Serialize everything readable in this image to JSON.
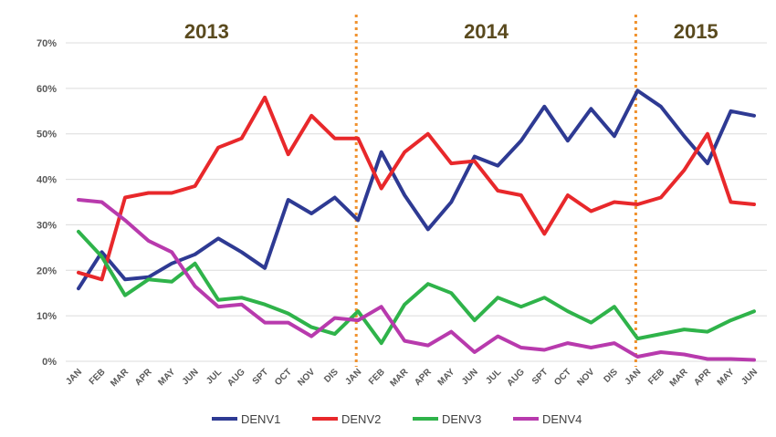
{
  "chart_data": {
    "type": "line",
    "title": "",
    "xlabel": "",
    "ylabel": "",
    "ylim": [
      0,
      70
    ],
    "yticks": [
      "0%",
      "10%",
      "20%",
      "30%",
      "40%",
      "50%",
      "60%",
      "70%"
    ],
    "grid": true,
    "legend_position": "bottom",
    "categories": [
      "JAN",
      "FEB",
      "MAR",
      "APR",
      "MAY",
      "JUN",
      "JUL",
      "AUG",
      "SPT",
      "OCT",
      "NOV",
      "DIS",
      "JAN",
      "FEB",
      "MAR",
      "APR",
      "MAY",
      "JUN",
      "JUL",
      "AUG",
      "SPT",
      "OCT",
      "NOV",
      "DIS",
      "JAN",
      "FEB",
      "MAR",
      "APR",
      "MAY",
      "JUN"
    ],
    "year_labels": [
      {
        "text": "2013",
        "start_index": 0,
        "end_index": 11
      },
      {
        "text": "2014",
        "start_index": 12,
        "end_index": 23
      },
      {
        "text": "2015",
        "start_index": 24,
        "end_index": 29
      }
    ],
    "year_dividers_at_index": [
      12,
      24
    ],
    "divider_color": "#f0922e",
    "series": [
      {
        "name": "DENV1",
        "color": "#2e3a93",
        "values": [
          16,
          24,
          18,
          18.5,
          21.5,
          23.5,
          27,
          24,
          20.5,
          35.5,
          32.5,
          36,
          31,
          46,
          36.5,
          29,
          35,
          45,
          43,
          48.5,
          56,
          48.5,
          55.5,
          49.5,
          59.5,
          56,
          49.5,
          43.5,
          55,
          54
        ]
      },
      {
        "name": "DENV2",
        "color": "#e8282b",
        "values": [
          19.5,
          18,
          36,
          37,
          37,
          38.5,
          47,
          49,
          58,
          45.5,
          54,
          49,
          49,
          38,
          46,
          50,
          43.5,
          44,
          37.5,
          36.5,
          28,
          36.5,
          33,
          35,
          34.5,
          36,
          42,
          50,
          35,
          34.5
        ]
      },
      {
        "name": "DENV3",
        "color": "#2fb34a",
        "values": [
          28.5,
          23,
          14.5,
          18,
          17.5,
          21.5,
          13.5,
          14,
          12.5,
          10.5,
          7.5,
          6,
          11,
          4,
          12.5,
          17,
          15,
          9,
          14,
          12,
          14,
          11,
          8.5,
          12,
          5,
          6,
          7,
          6.5,
          9,
          11
        ]
      },
      {
        "name": "DENV4",
        "color": "#b83aad",
        "values": [
          35.5,
          35,
          31,
          26.5,
          24,
          16.5,
          12,
          12.5,
          8.5,
          8.5,
          5.5,
          9.5,
          9,
          12,
          4.5,
          3.5,
          6.5,
          2,
          5.5,
          3,
          2.5,
          4,
          3,
          4,
          1,
          2,
          1.5,
          0.5,
          0.5,
          0.3
        ]
      }
    ]
  }
}
